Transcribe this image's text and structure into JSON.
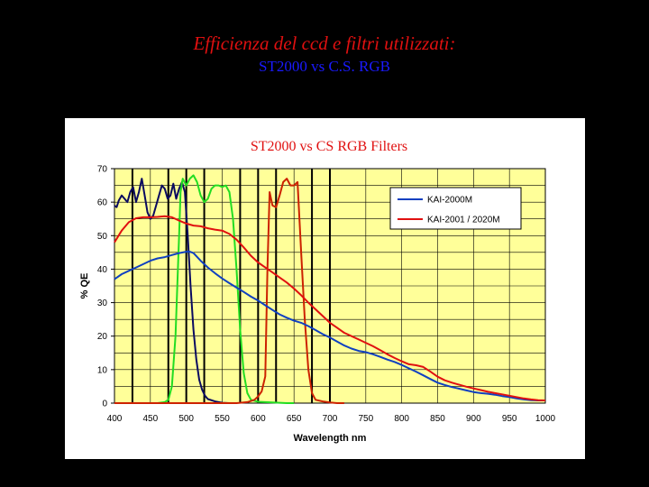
{
  "slide": {
    "title": "Efficienza del ccd e filtri utilizzati:",
    "subtitle": "ST2000 vs C.S. RGB"
  },
  "chart_data": {
    "type": "line",
    "title": "ST2000 vs CS RGB Filters",
    "xlabel": "Wavelength nm",
    "ylabel": "% QE",
    "xlim": [
      400,
      1000
    ],
    "ylim": [
      0,
      70
    ],
    "xticks": [
      400,
      450,
      500,
      550,
      600,
      650,
      700,
      750,
      800,
      850,
      900,
      950,
      1000
    ],
    "yticks": [
      0,
      10,
      20,
      30,
      40,
      50,
      60,
      70
    ],
    "grid": true,
    "legend_position": "top-right",
    "plot_background": "#ffff99",
    "marker_lines_x": [
      425,
      475,
      500,
      525,
      575,
      600,
      625,
      675,
      700
    ],
    "series": [
      {
        "name": "KAI-2000M",
        "color": "#1040c0",
        "legend": true,
        "x": [
          400,
          410,
          420,
          430,
          440,
          450,
          460,
          470,
          480,
          490,
          500,
          505,
          510,
          520,
          530,
          540,
          550,
          560,
          570,
          580,
          590,
          600,
          610,
          620,
          630,
          640,
          650,
          660,
          670,
          680,
          690,
          700,
          710,
          720,
          730,
          740,
          750,
          760,
          770,
          780,
          790,
          800,
          810,
          820,
          830,
          840,
          850,
          860,
          870,
          880,
          890,
          900,
          910,
          920,
          930,
          940,
          950,
          960,
          970,
          980,
          990,
          1000
        ],
        "y": [
          37,
          38.5,
          39.5,
          40.5,
          41.5,
          42.5,
          43.2,
          43.6,
          44.2,
          44.8,
          45.2,
          45.2,
          44.8,
          42.5,
          40.5,
          38.8,
          37.2,
          35.8,
          34.5,
          33.2,
          31.8,
          30.6,
          29.2,
          27.8,
          26.5,
          25.5,
          24.6,
          24,
          23,
          21.8,
          20.6,
          19.6,
          18.4,
          17.2,
          16.3,
          15.6,
          15.2,
          14.6,
          13.8,
          13,
          12.3,
          11.4,
          10.4,
          9.4,
          8.3,
          7.2,
          6.1,
          5.4,
          4.8,
          4.3,
          3.8,
          3.3,
          3,
          2.8,
          2.5,
          2.1,
          1.8,
          1.4,
          1.1,
          0.9,
          0.8,
          0.8
        ]
      },
      {
        "name": "KAI-2001 / 2020M",
        "color": "#e01010",
        "legend": true,
        "x": [
          400,
          410,
          420,
          430,
          440,
          450,
          460,
          470,
          480,
          490,
          500,
          510,
          520,
          530,
          540,
          550,
          560,
          570,
          580,
          590,
          600,
          610,
          620,
          630,
          640,
          650,
          660,
          670,
          680,
          690,
          700,
          710,
          720,
          730,
          740,
          750,
          760,
          770,
          780,
          790,
          800,
          810,
          820,
          830,
          840,
          850,
          860,
          870,
          880,
          890,
          900,
          910,
          920,
          930,
          940,
          950,
          960,
          970,
          980,
          990,
          1000
        ],
        "y": [
          48,
          51.5,
          54,
          55.2,
          55.5,
          55.5,
          55.6,
          55.8,
          55.5,
          54.5,
          53.6,
          53,
          52.8,
          52.2,
          51.8,
          51.5,
          50.5,
          48.8,
          46.5,
          44,
          42,
          40.5,
          39,
          37.5,
          36,
          34.2,
          32.2,
          30,
          28,
          26,
          24,
          22.5,
          21,
          20,
          19,
          18,
          17,
          15.8,
          14.6,
          13.5,
          12.5,
          11.6,
          11.3,
          10.8,
          9.4,
          7.9,
          6.8,
          6.1,
          5.5,
          4.9,
          4.4,
          3.9,
          3.4,
          3,
          2.6,
          2.2,
          1.8,
          1.4,
          1.1,
          0.9,
          0.8
        ]
      },
      {
        "name": "",
        "color": "#0a0a60",
        "legend": false,
        "x": [
          400,
          403,
          406,
          410,
          414,
          418,
          422,
          426,
          430,
          434,
          438,
          442,
          446,
          450,
          454,
          458,
          462,
          466,
          470,
          474,
          478,
          482,
          486,
          490,
          494,
          498,
          502,
          506,
          510,
          514,
          518,
          522,
          526,
          530,
          540,
          550,
          560
        ],
        "y": [
          59,
          58.5,
          60.5,
          62,
          61,
          60,
          63,
          64.5,
          60,
          63,
          67,
          62,
          57,
          55,
          56,
          59,
          62,
          65,
          64,
          61,
          62,
          65.5,
          61,
          64,
          66,
          63,
          50,
          35,
          22,
          13,
          7,
          4,
          2.2,
          1.2,
          0.5,
          0.1,
          0
        ]
      },
      {
        "name": "",
        "color": "#22dd22",
        "legend": false,
        "x": [
          400,
          460,
          470,
          475,
          480,
          485,
          490,
          492,
          495,
          500,
          505,
          510,
          515,
          520,
          525,
          530,
          535,
          540,
          545,
          550,
          555,
          560,
          565,
          570,
          575,
          580,
          585,
          590,
          600,
          610,
          620,
          630,
          640,
          650
        ],
        "y": [
          0,
          0,
          0.3,
          1,
          5,
          20,
          50,
          63,
          67,
          65,
          67,
          68,
          66,
          62,
          60,
          61,
          64,
          65,
          65,
          64.5,
          65,
          63,
          55,
          40,
          22,
          9,
          3,
          1,
          0.4,
          0.3,
          0.2,
          0.1,
          0,
          0
        ]
      },
      {
        "name": "",
        "color": "#cc2200",
        "legend": false,
        "x": [
          400,
          570,
          585,
          595,
          600,
          605,
          610,
          613,
          616,
          620,
          625,
          630,
          635,
          640,
          645,
          650,
          655,
          660,
          665,
          670,
          675,
          680,
          690,
          700,
          710,
          720
        ],
        "y": [
          0,
          0,
          0.3,
          1,
          2,
          3.5,
          8,
          40,
          63,
          59,
          58.5,
          62,
          66,
          67,
          65,
          65,
          66,
          45,
          25,
          10,
          3,
          1,
          0.5,
          0.2,
          0,
          0
        ]
      }
    ]
  }
}
